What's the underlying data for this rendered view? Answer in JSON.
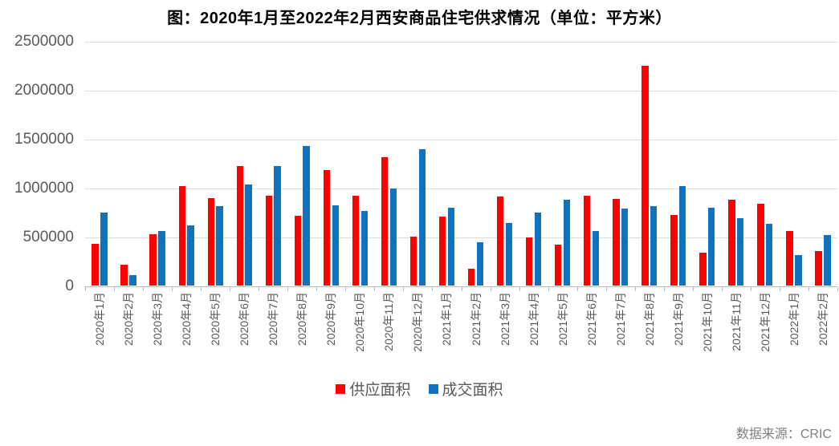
{
  "page": {
    "source": "数据来源：CRIC"
  },
  "chart_data": {
    "type": "bar",
    "title": "图：2020年1月至2022年2月西安商品住宅供求情况（单位：平方米）",
    "categories": [
      "2020年1月",
      "2020年2月",
      "2020年3月",
      "2020年4月",
      "2020年5月",
      "2020年6月",
      "2020年7月",
      "2020年8月",
      "2020年9月",
      "2020年10月",
      "2020年11月",
      "2020年12月",
      "2021年1月",
      "2021年2月",
      "2021年3月",
      "2021年4月",
      "2021年5月",
      "2021年6月",
      "2021年7月",
      "2021年8月",
      "2021年9月",
      "2021年10月",
      "2021年11月",
      "2021年12月",
      "2022年1月",
      "2022年2月"
    ],
    "series": [
      {
        "name": "供应面积",
        "color": "#FF0000",
        "values": [
          430000,
          220000,
          530000,
          1020000,
          900000,
          1230000,
          925000,
          720000,
          1190000,
          925000,
          1315000,
          505000,
          710000,
          180000,
          915000,
          500000,
          420000,
          920000,
          890000,
          2250000,
          725000,
          340000,
          880000,
          845000,
          565000,
          355000
        ]
      },
      {
        "name": "成交面积",
        "color": "#1271BD",
        "values": [
          750000,
          110000,
          560000,
          620000,
          820000,
          1040000,
          1230000,
          1430000,
          825000,
          765000,
          1000000,
          1400000,
          800000,
          450000,
          645000,
          750000,
          880000,
          565000,
          790000,
          820000,
          1020000,
          800000,
          690000,
          640000,
          315000,
          525000
        ]
      }
    ],
    "ylim": [
      0,
      2500000
    ],
    "yticks": [
      0,
      500000,
      1000000,
      1500000,
      2000000,
      2500000
    ],
    "xlabel": "",
    "ylabel": "",
    "grid": true,
    "legend_position": "bottom"
  }
}
